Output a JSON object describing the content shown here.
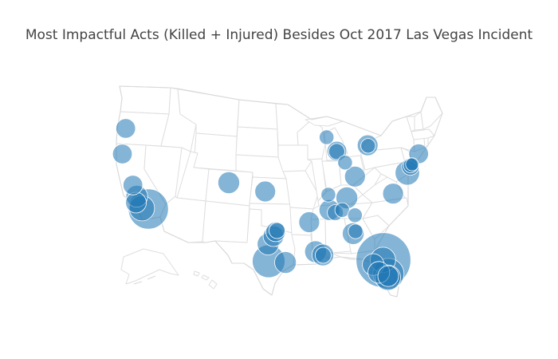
{
  "title": "Most Impactful Acts (Killed + Injured) Besides Oct 2017 Las Vegas Incident",
  "colors": {
    "marker": "#1f77b4",
    "marker_opacity": 0.55,
    "state_border": "#dedede",
    "land": "#ffffff"
  },
  "map": {
    "scope": "usa",
    "projection": "albers usa"
  },
  "markers": [
    {
      "label": "Seattle, WA",
      "lon": -122.33,
      "lat": 47.61,
      "magnitude": 18
    },
    {
      "label": "Oregon coast",
      "lon": -123.2,
      "lat": 44.6,
      "magnitude": 18
    },
    {
      "label": "San Joaquin Valley, CA",
      "lon": -120.5,
      "lat": 37.6,
      "magnitude": 18
    },
    {
      "label": "Fresno area, CA",
      "lon": -119.5,
      "lat": 36.4,
      "magnitude": 22
    },
    {
      "label": "Santa Barbara, CA",
      "lon": -119.7,
      "lat": 34.9,
      "magnitude": 20
    },
    {
      "label": "Los Angeles, CA",
      "lon": -118.2,
      "lat": 34.2,
      "magnitude": 30
    },
    {
      "label": "San Bernardino, CA",
      "lon": -117.2,
      "lat": 34.1,
      "magnitude": 75
    },
    {
      "label": "Colorado",
      "lon": -104.8,
      "lat": 39.7,
      "magnitude": 22
    },
    {
      "label": "Central Kansas",
      "lon": -98.4,
      "lat": 38.8,
      "magnitude": 20
    },
    {
      "label": "Madison, WI",
      "lon": -89.4,
      "lat": 43.07,
      "magnitude": 10
    },
    {
      "label": "Chicago, IL",
      "lon": -87.63,
      "lat": 41.88,
      "magnitude": 18
    },
    {
      "label": "Chicago, IL (2)",
      "lon": -87.65,
      "lat": 41.85,
      "magnitude": 12
    },
    {
      "label": "Detroit, MI",
      "lon": -83.05,
      "lat": 42.33,
      "magnitude": 10
    },
    {
      "label": "Detroit, MI (2)",
      "lon": -83.1,
      "lat": 42.38,
      "magnitude": 20
    },
    {
      "label": "Indiana",
      "lon": -86.2,
      "lat": 40.9,
      "magnitude": 10
    },
    {
      "label": "Cincinnati, OH",
      "lon": -84.5,
      "lat": 39.6,
      "magnitude": 20
    },
    {
      "label": "Virginia",
      "lon": -78.9,
      "lat": 38.0,
      "magnitude": 20
    },
    {
      "label": "Philadelphia, PA",
      "lon": -75.2,
      "lat": 39.95,
      "magnitude": 28
    },
    {
      "label": "New Jersey",
      "lon": -74.4,
      "lat": 40.55,
      "magnitude": 14
    },
    {
      "label": "New Jersey (2)",
      "lon": -74.3,
      "lat": 40.65,
      "magnitude": 10
    },
    {
      "label": "New York, NY",
      "lon": -73.95,
      "lat": 40.75,
      "magnitude": 8
    },
    {
      "label": "Hartford, CT",
      "lon": -72.9,
      "lat": 41.65,
      "magnitude": 18
    },
    {
      "label": "Southern Illinois",
      "lon": -89.1,
      "lat": 37.9,
      "magnitude": 10
    },
    {
      "label": "Louisville, KY",
      "lon": -85.9,
      "lat": 37.6,
      "magnitude": 22
    },
    {
      "label": "West Tennessee",
      "lon": -88.9,
      "lat": 36.2,
      "magnitude": 20
    },
    {
      "label": "Nashville, TN",
      "lon": -86.7,
      "lat": 36.2,
      "magnitude": 10
    },
    {
      "label": "Tennessee valley",
      "lon": -87.9,
      "lat": 35.9,
      "magnitude": 12
    },
    {
      "label": "Knoxville, TN",
      "lon": -84.5,
      "lat": 35.6,
      "magnitude": 10
    },
    {
      "label": "Little Rock, AR",
      "lon": -92.0,
      "lat": 34.8,
      "magnitude": 20
    },
    {
      "label": "Atlanta, GA",
      "lon": -84.4,
      "lat": 33.75,
      "magnitude": 10
    },
    {
      "label": "West Georgia",
      "lon": -84.8,
      "lat": 33.4,
      "magnitude": 22
    },
    {
      "label": "Dallas, TX",
      "lon": -96.8,
      "lat": 32.8,
      "magnitude": 18
    },
    {
      "label": "North Texas",
      "lon": -96.6,
      "lat": 33.1,
      "magnitude": 12
    },
    {
      "label": "Waco, TX",
      "lon": -97.1,
      "lat": 31.8,
      "magnitude": 20
    },
    {
      "label": "Central Texas",
      "lon": -97.9,
      "lat": 31.45,
      "magnitude": 22
    },
    {
      "label": "Austin, TX",
      "lon": -97.8,
      "lat": 30.0,
      "magnitude": 50
    },
    {
      "label": "Houston, TX",
      "lon": -95.4,
      "lat": 29.9,
      "magnitude": 22
    },
    {
      "label": "Baton Rouge, LA",
      "lon": -91.1,
      "lat": 30.6,
      "magnitude": 22
    },
    {
      "label": "New Orleans, LA",
      "lon": -90.05,
      "lat": 30.1,
      "magnitude": 22
    },
    {
      "label": "New Orleans, LA (2)",
      "lon": -90.0,
      "lat": 30.05,
      "magnitude": 12
    },
    {
      "label": "Orlando, FL",
      "lon": -81.4,
      "lat": 28.55,
      "magnitude": 140
    },
    {
      "label": "Orlando, FL (2)",
      "lon": -81.45,
      "lat": 28.6,
      "magnitude": 30
    },
    {
      "label": "Tampa, FL",
      "lon": -82.5,
      "lat": 27.95,
      "magnitude": 22
    },
    {
      "label": "Fort Myers, FL",
      "lon": -81.9,
      "lat": 26.9,
      "magnitude": 22
    },
    {
      "label": "West Palm Beach, FL",
      "lon": -80.1,
      "lat": 26.7,
      "magnitude": 45
    },
    {
      "label": "Miami, FL",
      "lon": -80.25,
      "lat": 26.2,
      "magnitude": 30
    },
    {
      "label": "Fort Lauderdale, FL",
      "lon": -80.15,
      "lat": 26.4,
      "magnitude": 20
    }
  ]
}
